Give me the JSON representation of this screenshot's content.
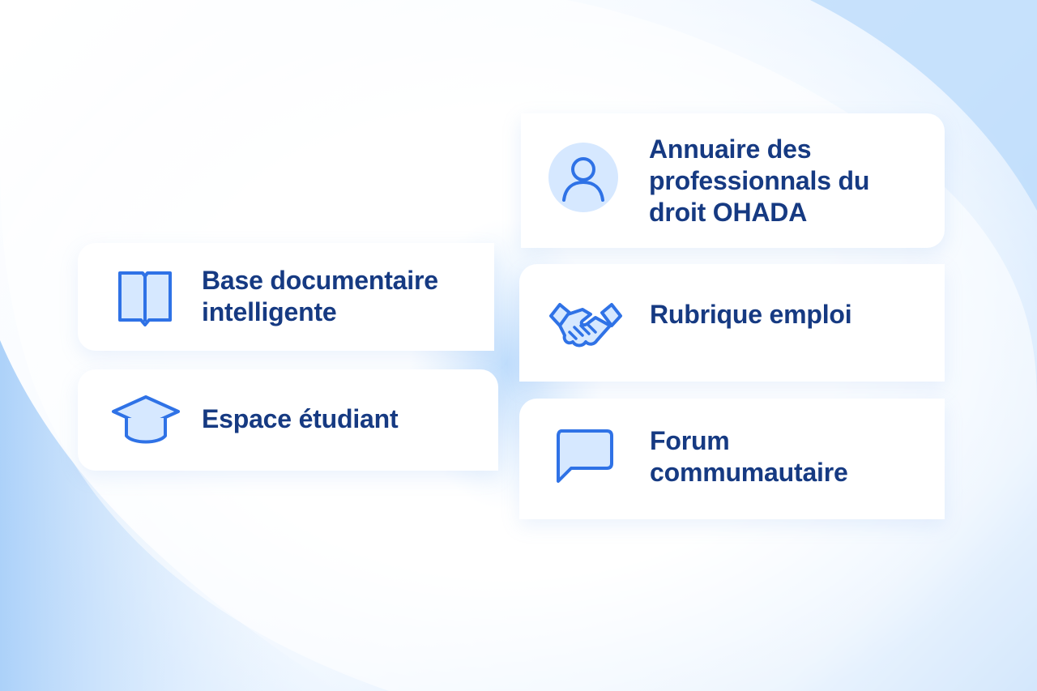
{
  "cards": [
    {
      "id": "annuaire",
      "label_lines": [
        "Annuaire des",
        "professionnals du",
        "droit OHADA"
      ],
      "icon": "user-icon"
    },
    {
      "id": "base",
      "label_lines": [
        "Base documentaire",
        "intelligente"
      ],
      "icon": "open-book-icon"
    },
    {
      "id": "rubrique",
      "label_lines": [
        "Rubrique emploi"
      ],
      "icon": "handshake-icon"
    },
    {
      "id": "espace",
      "label_lines": [
        "Espace étudiant"
      ],
      "icon": "graduation-cap-icon"
    },
    {
      "id": "forum",
      "label_lines": [
        "Forum",
        "commumautaire"
      ],
      "icon": "chat-bubble-icon"
    }
  ],
  "colors": {
    "text": "#163a82",
    "icon_stroke": "#2f72e6",
    "icon_fill": "#d6e8ff",
    "background_accent": "#9fcaf8"
  }
}
